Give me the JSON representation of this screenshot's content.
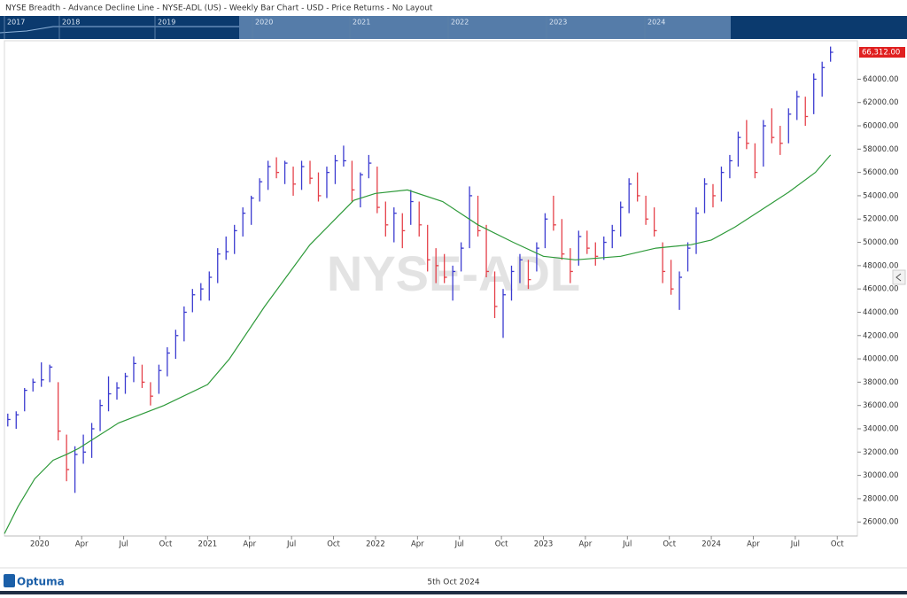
{
  "chart_data": {
    "type": "hlc-bar",
    "title": "NYSE Breadth - Advance Decline Line - NYSE-ADL (US) - Weekly Bar Chart - USD - Price Returns - No Layout",
    "watermark": "NYSE-ADL",
    "navigator": [
      "2017",
      "2018",
      "2019",
      "2020",
      "2021",
      "2022",
      "2023",
      "2024"
    ],
    "footer": {
      "brand": "Optuma",
      "date": "5th Oct 2024"
    },
    "xlim": [
      2019.79,
      2024.87
    ],
    "ylim": [
      24800,
      67300
    ],
    "xticks": [
      {
        "value": 2020,
        "label": "2020"
      },
      {
        "value": 2020.25,
        "label": "Apr"
      },
      {
        "value": 2020.5,
        "label": "Jul"
      },
      {
        "value": 2020.75,
        "label": "Oct"
      },
      {
        "value": 2021,
        "label": "2021"
      },
      {
        "value": 2021.25,
        "label": "Apr"
      },
      {
        "value": 2021.5,
        "label": "Jul"
      },
      {
        "value": 2021.75,
        "label": "Oct"
      },
      {
        "value": 2022,
        "label": "2022"
      },
      {
        "value": 2022.25,
        "label": "Apr"
      },
      {
        "value": 2022.5,
        "label": "Jul"
      },
      {
        "value": 2022.75,
        "label": "Oct"
      },
      {
        "value": 2023,
        "label": "2023"
      },
      {
        "value": 2023.25,
        "label": "Apr"
      },
      {
        "value": 2023.5,
        "label": "Jul"
      },
      {
        "value": 2023.75,
        "label": "Oct"
      },
      {
        "value": 2024,
        "label": "2024"
      },
      {
        "value": 2024.25,
        "label": "Apr"
      },
      {
        "value": 2024.5,
        "label": "Jul"
      },
      {
        "value": 2024.75,
        "label": "Oct"
      }
    ],
    "yticks": [
      {
        "value": 26000,
        "label": "26000.00"
      },
      {
        "value": 28000,
        "label": "28000.00"
      },
      {
        "value": 30000,
        "label": "30000.00"
      },
      {
        "value": 32000,
        "label": "32000.00"
      },
      {
        "value": 34000,
        "label": "34000.00"
      },
      {
        "value": 36000,
        "label": "36000.00"
      },
      {
        "value": 38000,
        "label": "38000.00"
      },
      {
        "value": 40000,
        "label": "40000.00"
      },
      {
        "value": 42000,
        "label": "42000.00"
      },
      {
        "value": 44000,
        "label": "44000.00"
      },
      {
        "value": 46000,
        "label": "46000.00"
      },
      {
        "value": 48000,
        "label": "48000.00"
      },
      {
        "value": 50000,
        "label": "50000.00"
      },
      {
        "value": 52000,
        "label": "52000.00"
      },
      {
        "value": 54000,
        "label": "54000.00"
      },
      {
        "value": 56000,
        "label": "56000.00"
      },
      {
        "value": 58000,
        "label": "58000.00"
      },
      {
        "value": 60000,
        "label": "60000.00"
      },
      {
        "value": 62000,
        "label": "62000.00"
      },
      {
        "value": 64000,
        "label": "64000.00"
      }
    ],
    "last_price": {
      "value": 66312,
      "label": "66,312.00"
    },
    "up_color": "#3b3bd0",
    "down_color": "#e5414a",
    "bars": {
      "x": [
        2019.81,
        2019.86,
        2019.91,
        2019.96,
        2020.01,
        2020.06,
        2020.11,
        2020.16,
        2020.21,
        2020.26,
        2020.31,
        2020.36,
        2020.41,
        2020.46,
        2020.51,
        2020.56,
        2020.61,
        2020.66,
        2020.71,
        2020.76,
        2020.81,
        2020.86,
        2020.91,
        2020.96,
        2021.01,
        2021.06,
        2021.11,
        2021.16,
        2021.21,
        2021.26,
        2021.31,
        2021.36,
        2021.41,
        2021.46,
        2021.51,
        2021.56,
        2021.61,
        2021.66,
        2021.71,
        2021.76,
        2021.81,
        2021.86,
        2021.91,
        2021.96,
        2022.01,
        2022.06,
        2022.11,
        2022.16,
        2022.21,
        2022.26,
        2022.31,
        2022.36,
        2022.41,
        2022.46,
        2022.51,
        2022.56,
        2022.61,
        2022.66,
        2022.71,
        2022.76,
        2022.81,
        2022.86,
        2022.91,
        2022.96,
        2023.01,
        2023.06,
        2023.11,
        2023.16,
        2023.21,
        2023.26,
        2023.31,
        2023.36,
        2023.41,
        2023.46,
        2023.51,
        2023.56,
        2023.61,
        2023.66,
        2023.71,
        2023.76,
        2023.81,
        2023.86,
        2023.91,
        2023.96,
        2024.01,
        2024.06,
        2024.11,
        2024.16,
        2024.21,
        2024.26,
        2024.31,
        2024.36,
        2024.41,
        2024.46,
        2024.51,
        2024.56,
        2024.61,
        2024.66,
        2024.71
      ],
      "high": [
        35300,
        35500,
        37500,
        38300,
        39700,
        39500,
        38000,
        33500,
        32500,
        33500,
        34500,
        36500,
        38500,
        38000,
        38800,
        40200,
        39500,
        38000,
        39500,
        41000,
        42500,
        44500,
        46000,
        46500,
        47500,
        49500,
        50500,
        51500,
        53000,
        54000,
        55500,
        57000,
        57300,
        57000,
        56500,
        57000,
        57000,
        56000,
        56500,
        57500,
        58300,
        57000,
        56000,
        57500,
        56500,
        53500,
        53000,
        52500,
        54500,
        53500,
        51500,
        49500,
        49000,
        48000,
        50000,
        54800,
        54000,
        51500,
        47500,
        46000,
        48000,
        49000,
        48500,
        50000,
        52500,
        54000,
        52000,
        49500,
        51000,
        51000,
        50000,
        50500,
        51500,
        53500,
        55500,
        56000,
        54000,
        53000,
        50000,
        48500,
        47500,
        50000,
        53000,
        55500,
        55000,
        56500,
        57500,
        59500,
        60500,
        58500,
        60500,
        61500,
        60000,
        61500,
        63000,
        62500,
        64500,
        65500,
        66800
      ],
      "low": [
        34200,
        34000,
        35500,
        37200,
        37600,
        38000,
        33000,
        29500,
        28500,
        31000,
        31500,
        33800,
        35500,
        36500,
        37000,
        38000,
        37500,
        36000,
        37000,
        38500,
        40000,
        41500,
        44000,
        45000,
        45000,
        46500,
        48500,
        49000,
        50500,
        51500,
        53500,
        54500,
        55500,
        55000,
        54000,
        54500,
        55000,
        53500,
        53800,
        55000,
        56500,
        53500,
        53000,
        55500,
        52500,
        50500,
        50000,
        49500,
        51500,
        50500,
        47500,
        46500,
        46500,
        45000,
        47500,
        49500,
        50500,
        47000,
        43500,
        41800,
        45000,
        46500,
        46000,
        47500,
        49500,
        51000,
        48500,
        46500,
        48000,
        49000,
        48000,
        48500,
        49500,
        50500,
        52500,
        53500,
        51500,
        50500,
        46500,
        45500,
        44200,
        47500,
        49000,
        52500,
        53000,
        53500,
        55500,
        56500,
        58000,
        55500,
        56500,
        58500,
        57500,
        58500,
        60500,
        60000,
        61000,
        62500,
        65500
      ],
      "close": [
        34800,
        35200,
        37300,
        38000,
        38200,
        39300,
        33800,
        30500,
        31800,
        32000,
        34000,
        36000,
        37000,
        37500,
        38500,
        39600,
        38000,
        36800,
        39000,
        40500,
        42000,
        44000,
        45500,
        46000,
        47000,
        49000,
        49200,
        51000,
        52500,
        53800,
        55200,
        56500,
        56000,
        56800,
        55000,
        56500,
        55500,
        54000,
        56000,
        57000,
        57000,
        54500,
        55800,
        56800,
        53000,
        51500,
        52500,
        51000,
        53500,
        51500,
        48500,
        48000,
        47000,
        47500,
        49500,
        54000,
        51000,
        47500,
        44500,
        45500,
        47500,
        48500,
        46800,
        49500,
        52000,
        51500,
        49000,
        47500,
        50500,
        49500,
        48800,
        50000,
        51000,
        53000,
        55000,
        54000,
        52000,
        51000,
        47500,
        46000,
        47000,
        49500,
        52500,
        55000,
        54000,
        56000,
        57000,
        59000,
        58500,
        56000,
        60000,
        59000,
        58500,
        61000,
        62500,
        60800,
        64000,
        65000,
        66312
      ]
    },
    "ma": {
      "color": "#2e9a3a",
      "x": [
        2019.79,
        2019.87,
        2019.97,
        2020.08,
        2020.16,
        2020.23,
        2020.47,
        2020.74,
        2021.0,
        2021.13,
        2021.34,
        2021.61,
        2021.87,
        2022.0,
        2022.19,
        2022.4,
        2022.61,
        2022.82,
        2023.0,
        2023.19,
        2023.46,
        2023.67,
        2023.88,
        2024.0,
        2024.14,
        2024.3,
        2024.46,
        2024.62,
        2024.71
      ],
      "values": [
        25000,
        27300,
        29700,
        31300,
        31800,
        32300,
        34500,
        36000,
        37800,
        40000,
        44500,
        49800,
        53600,
        54200,
        54500,
        53500,
        51500,
        50000,
        48800,
        48500,
        48800,
        49500,
        49800,
        50200,
        51300,
        52800,
        54300,
        56000,
        57500
      ]
    }
  }
}
